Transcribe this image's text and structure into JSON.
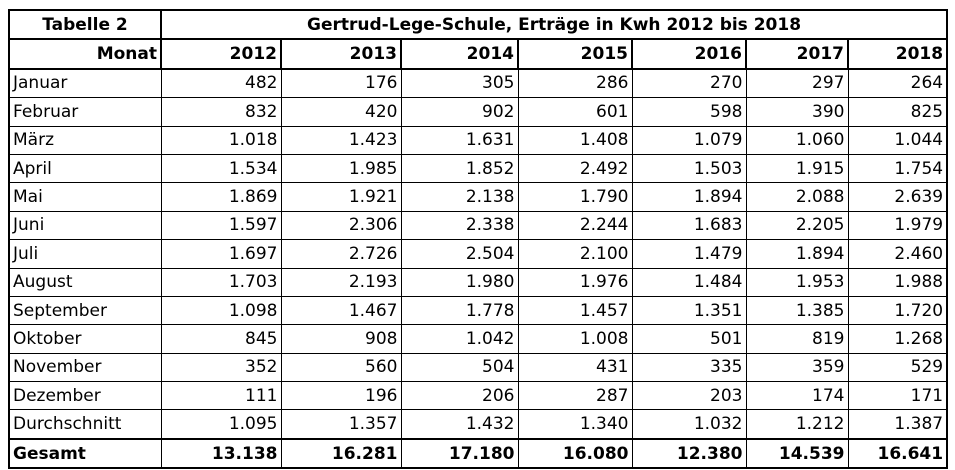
{
  "table": {
    "label": "Tabelle 2",
    "title": "Gertrud-Lege-Schule, Erträge in Kwh 2012 bis 2018",
    "month_header": "Monat",
    "years": [
      "2012",
      "2013",
      "2014",
      "2015",
      "2016",
      "2017",
      "2018"
    ],
    "rows": [
      {
        "label": "Januar",
        "values": [
          "482",
          "176",
          "305",
          "286",
          "270",
          "297",
          "264"
        ]
      },
      {
        "label": "Februar",
        "values": [
          "832",
          "420",
          "902",
          "601",
          "598",
          "390",
          "825"
        ]
      },
      {
        "label": "März",
        "values": [
          "1.018",
          "1.423",
          "1.631",
          "1.408",
          "1.079",
          "1.060",
          "1.044"
        ]
      },
      {
        "label": "April",
        "values": [
          "1.534",
          "1.985",
          "1.852",
          "2.492",
          "1.503",
          "1.915",
          "1.754"
        ]
      },
      {
        "label": "Mai",
        "values": [
          "1.869",
          "1.921",
          "2.138",
          "1.790",
          "1.894",
          "2.088",
          "2.639"
        ]
      },
      {
        "label": "Juni",
        "values": [
          "1.597",
          "2.306",
          "2.338",
          "2.244",
          "1.683",
          "2.205",
          "1.979"
        ]
      },
      {
        "label": "Juli",
        "values": [
          "1.697",
          "2.726",
          "2.504",
          "2.100",
          "1.479",
          "1.894",
          "2.460"
        ]
      },
      {
        "label": "August",
        "values": [
          "1.703",
          "2.193",
          "1.980",
          "1.976",
          "1.484",
          "1.953",
          "1.988"
        ]
      },
      {
        "label": "September",
        "values": [
          "1.098",
          "1.467",
          "1.778",
          "1.457",
          "1.351",
          "1.385",
          "1.720"
        ]
      },
      {
        "label": "Oktober",
        "values": [
          "845",
          "908",
          "1.042",
          "1.008",
          "501",
          "819",
          "1.268"
        ]
      },
      {
        "label": "November",
        "values": [
          "352",
          "560",
          "504",
          "431",
          "335",
          "359",
          "529"
        ]
      },
      {
        "label": "Dezember",
        "values": [
          "111",
          "196",
          "206",
          "287",
          "203",
          "174",
          "171"
        ]
      },
      {
        "label": "Durchschnitt",
        "values": [
          "1.095",
          "1.357",
          "1.432",
          "1.340",
          "1.032",
          "1.212",
          "1.387"
        ]
      }
    ],
    "total": {
      "label": "Gesamt",
      "values": [
        "13.138",
        "16.281",
        "17.180",
        "16.080",
        "12.380",
        "14.539",
        "16.641"
      ]
    }
  }
}
